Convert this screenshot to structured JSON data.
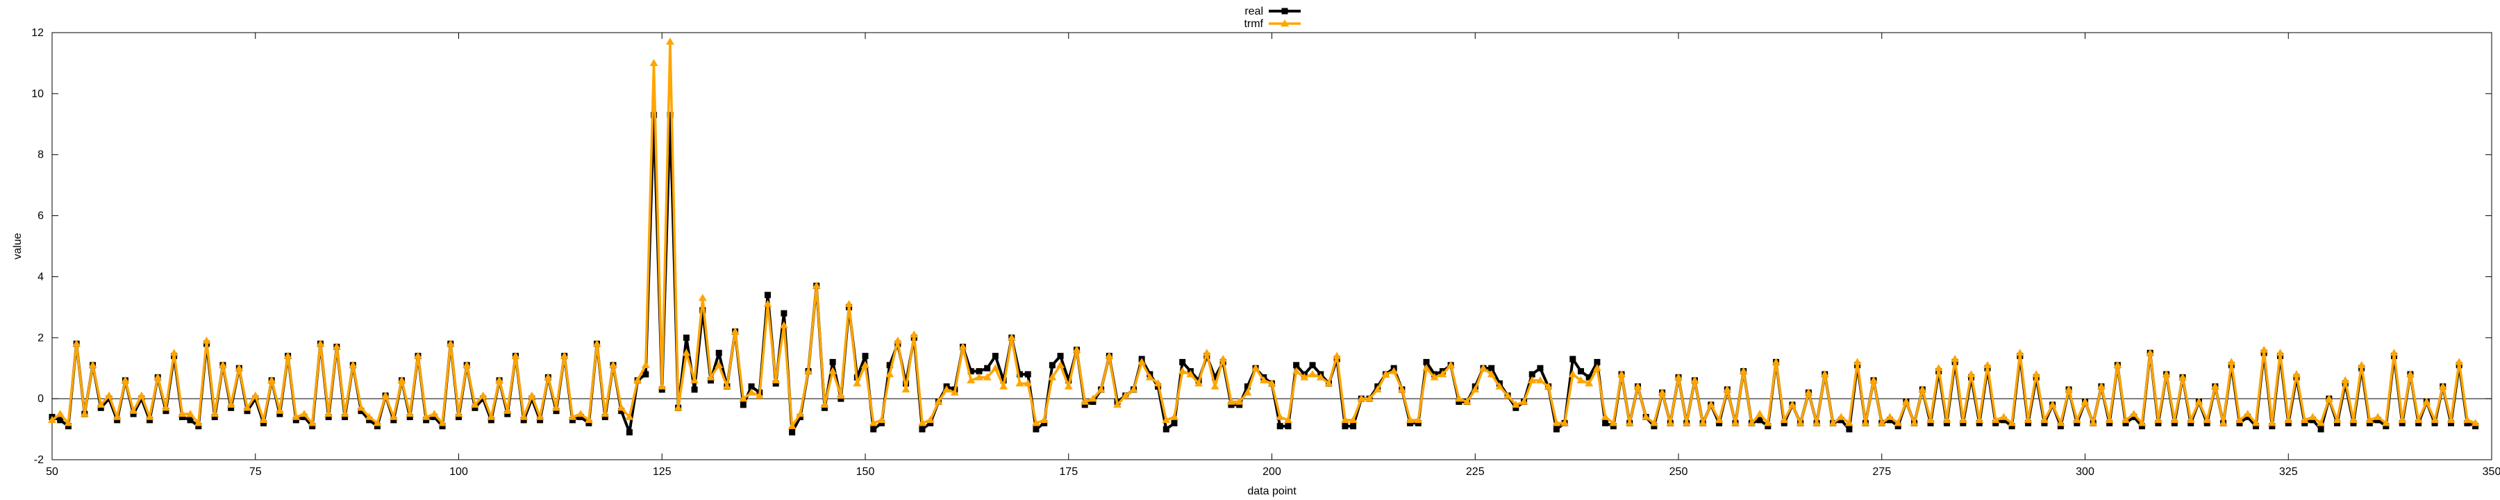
{
  "chart_data": {
    "type": "line",
    "xlabel": "data point",
    "ylabel": "value",
    "xlim": [
      50,
      350
    ],
    "ylim": [
      -2,
      12
    ],
    "x_ticks": [
      "50",
      "75",
      "100",
      "125",
      "150",
      "175",
      "200",
      "225",
      "250",
      "275",
      "300",
      "325",
      "350"
    ],
    "y_ticks": [
      "-2",
      "0",
      "2",
      "4",
      "6",
      "8",
      "10",
      "12"
    ],
    "legend_position": "top-center",
    "grid": false,
    "zero_line": true,
    "x_start": 50,
    "series": [
      {
        "name": "real",
        "color": "#000000",
        "marker": "square",
        "values": [
          -0.6,
          -0.7,
          -0.9,
          1.8,
          -0.5,
          1.1,
          -0.3,
          0.0,
          -0.7,
          0.6,
          -0.5,
          0.0,
          -0.7,
          0.7,
          -0.4,
          1.4,
          -0.6,
          -0.7,
          -0.9,
          1.8,
          -0.6,
          1.1,
          -0.3,
          1.0,
          -0.4,
          0.0,
          -0.8,
          0.6,
          -0.5,
          1.4,
          -0.7,
          -0.6,
          -0.9,
          1.8,
          -0.6,
          1.7,
          -0.6,
          1.1,
          -0.4,
          -0.7,
          -0.9,
          0.1,
          -0.7,
          0.6,
          -0.6,
          1.4,
          -0.7,
          -0.6,
          -0.9,
          1.8,
          -0.6,
          1.1,
          -0.3,
          0.0,
          -0.7,
          0.6,
          -0.5,
          1.4,
          -0.7,
          0.0,
          -0.7,
          0.7,
          -0.4,
          1.4,
          -0.7,
          -0.6,
          -0.8,
          1.8,
          -0.6,
          1.1,
          -0.4,
          -1.1,
          0.6,
          0.8,
          9.3,
          0.3,
          9.3,
          -0.3,
          2.0,
          0.3,
          2.9,
          0.6,
          1.5,
          0.4,
          2.2,
          -0.2,
          0.4,
          0.2,
          3.4,
          0.5,
          2.8,
          -1.1,
          -0.6,
          0.9,
          3.7,
          -0.3,
          1.2,
          0.0,
          3.0,
          0.7,
          1.4,
          -1.0,
          -0.8,
          1.1,
          1.8,
          0.5,
          2.0,
          -1.0,
          -0.8,
          -0.1,
          0.4,
          0.3,
          1.7,
          0.9,
          0.9,
          1.0,
          1.4,
          0.6,
          2.0,
          0.8,
          0.8,
          -1.0,
          -0.8,
          1.1,
          1.4,
          0.6,
          1.6,
          -0.2,
          -0.1,
          0.3,
          1.4,
          -0.1,
          0.1,
          0.3,
          1.3,
          0.8,
          0.4,
          -1.0,
          -0.8,
          1.2,
          0.9,
          0.6,
          1.4,
          0.7,
          1.2,
          -0.2,
          -0.2,
          0.4,
          1.0,
          0.7,
          0.5,
          -0.9,
          -0.9,
          1.1,
          0.8,
          1.1,
          0.8,
          0.5,
          1.3,
          -0.9,
          -0.9,
          0.0,
          0.0,
          0.4,
          0.8,
          1.0,
          0.3,
          -0.8,
          -0.8,
          1.2,
          0.8,
          0.9,
          1.1,
          -0.1,
          -0.1,
          0.4,
          1.0,
          1.0,
          0.5,
          0.1,
          -0.3,
          -0.1,
          0.8,
          1.0,
          0.4,
          -1.0,
          -0.8,
          1.3,
          0.9,
          0.7,
          1.2,
          -0.8,
          -0.9,
          0.8,
          -0.8,
          0.4,
          -0.6,
          -0.9,
          0.2,
          -0.8,
          0.7,
          -0.8,
          0.6,
          -0.8,
          -0.2,
          -0.8,
          0.3,
          -0.8,
          0.9,
          -0.8,
          -0.7,
          -0.9,
          1.2,
          -0.8,
          -0.2,
          -0.8,
          0.2,
          -0.8,
          0.8,
          -0.8,
          -0.7,
          -1.0,
          1.1,
          -0.8,
          0.6,
          -0.8,
          -0.7,
          -0.9,
          -0.1,
          -0.8,
          0.3,
          -0.8,
          0.9,
          -0.8,
          1.2,
          -0.8,
          0.7,
          -0.8,
          1.0,
          -0.8,
          -0.7,
          -0.9,
          1.4,
          -0.8,
          0.7,
          -0.8,
          -0.2,
          -0.9,
          0.3,
          -0.8,
          -0.1,
          -0.8,
          0.4,
          -0.8,
          1.1,
          -0.8,
          -0.6,
          -0.9,
          1.5,
          -0.8,
          0.8,
          -0.8,
          0.7,
          -0.8,
          -0.1,
          -0.8,
          0.4,
          -0.8,
          1.1,
          -0.8,
          -0.6,
          -0.9,
          1.5,
          -0.9,
          1.4,
          -0.8,
          0.7,
          -0.8,
          -0.7,
          -1.0,
          0.0,
          -0.8,
          0.5,
          -0.8,
          1.0,
          -0.8,
          -0.7,
          -0.9,
          1.4,
          -0.8,
          0.8,
          -0.8,
          -0.1,
          -0.8,
          0.4,
          -0.8,
          1.1,
          -0.8,
          -0.9
        ],
        "note_first_x": 50
      },
      {
        "name": "trmf",
        "color": "#ffa500",
        "marker": "triangle",
        "values": [
          -0.7,
          -0.5,
          -0.8,
          1.8,
          -0.5,
          1.1,
          -0.2,
          0.1,
          -0.6,
          0.6,
          -0.4,
          0.1,
          -0.6,
          0.7,
          -0.3,
          1.5,
          -0.5,
          -0.5,
          -0.8,
          1.9,
          -0.5,
          1.1,
          -0.2,
          1.0,
          -0.3,
          0.1,
          -0.7,
          0.6,
          -0.4,
          1.4,
          -0.6,
          -0.5,
          -0.8,
          1.8,
          -0.5,
          1.7,
          -0.5,
          1.1,
          -0.3,
          -0.6,
          -0.8,
          0.1,
          -0.6,
          0.6,
          -0.5,
          1.4,
          -0.6,
          -0.5,
          -0.8,
          1.8,
          -0.5,
          1.1,
          -0.2,
          0.1,
          -0.6,
          0.6,
          -0.4,
          1.4,
          -0.6,
          0.1,
          -0.6,
          0.7,
          -0.3,
          1.4,
          -0.6,
          -0.5,
          -0.7,
          1.8,
          -0.5,
          1.1,
          -0.3,
          -0.6,
          0.6,
          1.1,
          11.0,
          0.4,
          11.7,
          -0.3,
          1.5,
          0.6,
          3.3,
          0.7,
          1.1,
          0.4,
          2.2,
          0.0,
          0.2,
          0.1,
          3.1,
          0.6,
          2.4,
          -0.9,
          -0.5,
          0.9,
          3.7,
          -0.2,
          0.9,
          0.1,
          3.1,
          0.5,
          1.1,
          -0.8,
          -0.7,
          0.8,
          1.9,
          0.3,
          2.1,
          -0.8,
          -0.7,
          -0.1,
          0.3,
          0.2,
          1.7,
          0.6,
          0.7,
          0.7,
          1.0,
          0.4,
          2.0,
          0.5,
          0.5,
          -0.8,
          -0.7,
          0.7,
          1.1,
          0.4,
          1.6,
          -0.1,
          0.0,
          0.3,
          1.4,
          -0.2,
          0.1,
          0.3,
          1.2,
          0.7,
          0.5,
          -0.7,
          -0.6,
          0.9,
          0.8,
          0.5,
          1.5,
          0.4,
          1.3,
          -0.1,
          -0.1,
          0.2,
          1.0,
          0.6,
          0.5,
          -0.6,
          -0.7,
          0.9,
          0.7,
          0.8,
          0.7,
          0.5,
          1.4,
          -0.7,
          -0.7,
          0.0,
          0.0,
          0.3,
          0.8,
          0.9,
          0.3,
          -0.7,
          -0.7,
          1.0,
          0.7,
          0.8,
          1.1,
          0.0,
          -0.1,
          0.3,
          1.0,
          0.8,
          0.4,
          0.1,
          -0.2,
          -0.1,
          0.6,
          0.6,
          0.4,
          -0.8,
          -0.8,
          0.8,
          0.6,
          0.5,
          1.0,
          -0.6,
          -0.8,
          0.8,
          -0.8,
          0.4,
          -0.6,
          -0.8,
          0.2,
          -0.8,
          0.7,
          -0.8,
          0.6,
          -0.8,
          -0.2,
          -0.7,
          0.3,
          -0.8,
          0.9,
          -0.8,
          -0.5,
          -0.8,
          1.2,
          -0.7,
          -0.2,
          -0.8,
          0.2,
          -0.8,
          0.8,
          -0.8,
          -0.6,
          -0.8,
          1.2,
          -0.8,
          0.6,
          -0.8,
          -0.6,
          -0.8,
          -0.1,
          -0.8,
          0.3,
          -0.7,
          1.0,
          -0.7,
          1.3,
          -0.7,
          0.8,
          -0.7,
          1.1,
          -0.7,
          -0.6,
          -0.8,
          1.5,
          -0.7,
          0.8,
          -0.7,
          -0.2,
          -0.8,
          0.3,
          -0.7,
          -0.1,
          -0.8,
          0.4,
          -0.7,
          1.1,
          -0.7,
          -0.5,
          -0.8,
          1.5,
          -0.7,
          0.8,
          -0.7,
          0.7,
          -0.7,
          -0.1,
          -0.7,
          0.4,
          -0.8,
          1.2,
          -0.7,
          -0.5,
          -0.8,
          1.6,
          -0.8,
          1.5,
          -0.7,
          0.8,
          -0.7,
          -0.6,
          -0.8,
          0.0,
          -0.7,
          0.6,
          -0.7,
          1.1,
          -0.7,
          -0.6,
          -0.8,
          1.5,
          -0.7,
          0.8,
          -0.7,
          -0.1,
          -0.7,
          0.4,
          -0.7,
          1.2,
          -0.7,
          -0.8
        ]
      }
    ]
  }
}
